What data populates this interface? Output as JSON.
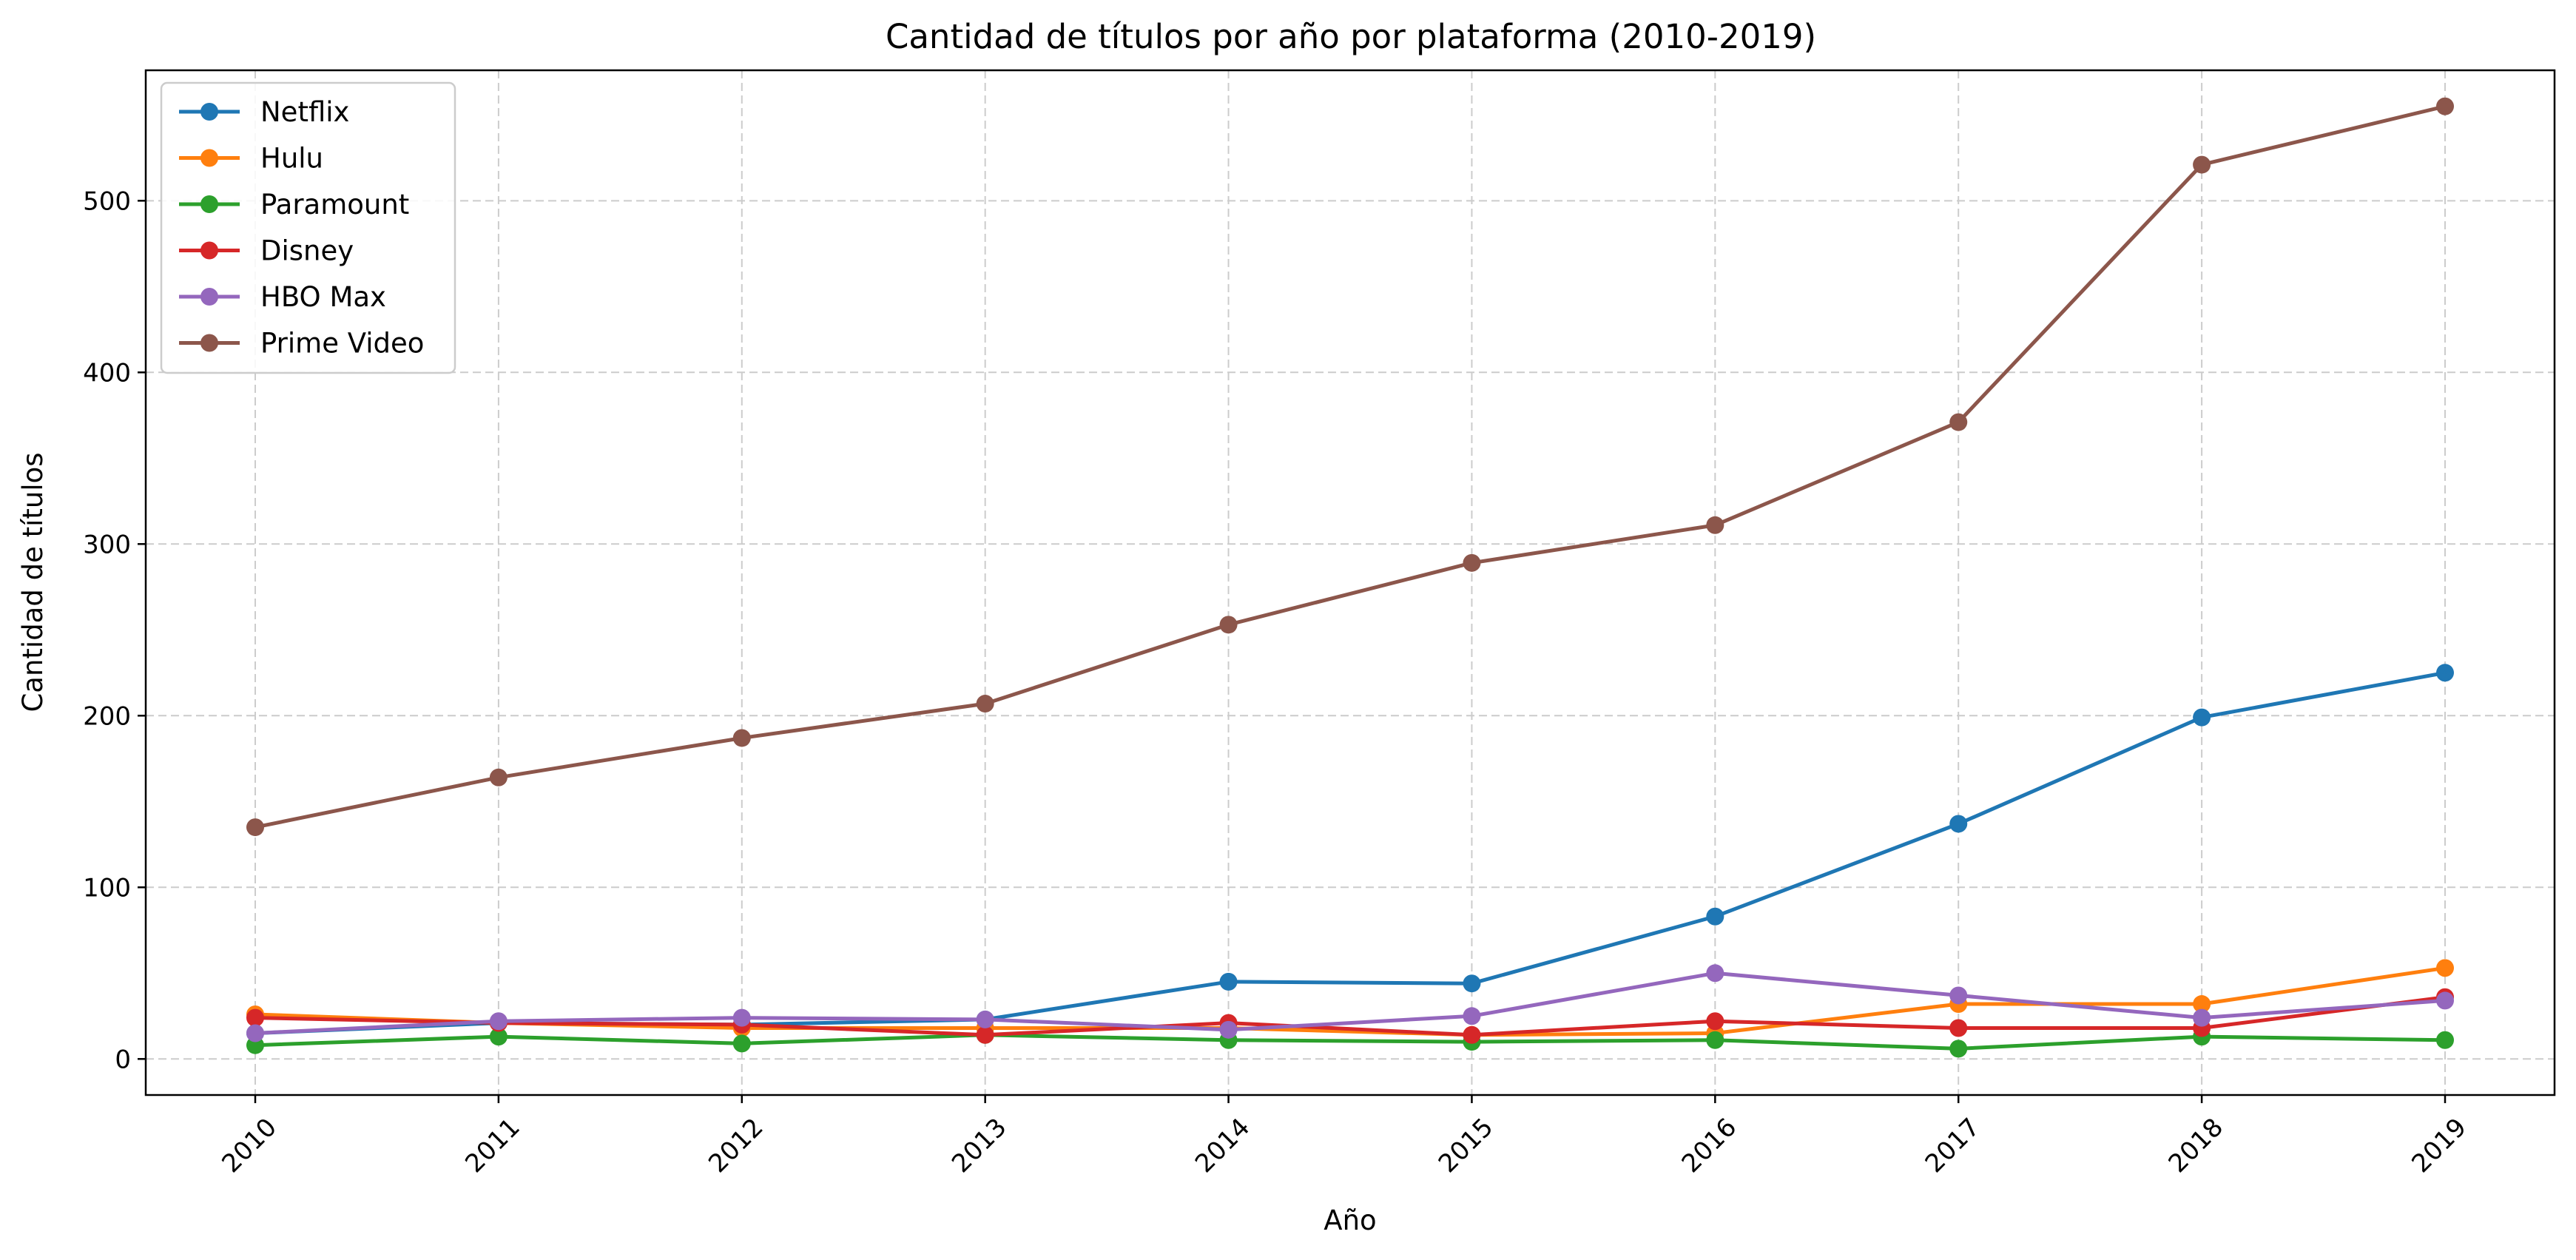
{
  "chart_data": {
    "type": "line",
    "title": "Cantidad de títulos por año por plataforma (2010-2019)",
    "xlabel": "Año",
    "ylabel": "Cantidad de títulos",
    "x": [
      2010,
      2011,
      2012,
      2013,
      2014,
      2015,
      2016,
      2017,
      2018,
      2019
    ],
    "x_tick_labels": [
      "2010",
      "2011",
      "2012",
      "2013",
      "2014",
      "2015",
      "2016",
      "2017",
      "2018",
      "2019"
    ],
    "y_ticks": [
      0,
      100,
      200,
      300,
      400,
      500
    ],
    "y_tick_labels": [
      "0",
      "100",
      "200",
      "300",
      "400",
      "500"
    ],
    "xlim": [
      2009.55,
      2019.45
    ],
    "ylim": [
      -21,
      576
    ],
    "grid": true,
    "legend_position": "top-left",
    "series": [
      {
        "name": "Netflix",
        "color": "#1f77b4",
        "values": [
          15,
          21,
          20,
          23,
          45,
          44,
          83,
          137,
          199,
          225
        ]
      },
      {
        "name": "Hulu",
        "color": "#ff7f0e",
        "values": [
          26,
          21,
          18,
          18,
          18,
          14,
          15,
          32,
          32,
          53
        ]
      },
      {
        "name": "Paramount",
        "color": "#2ca02c",
        "values": [
          8,
          13,
          9,
          14,
          11,
          10,
          11,
          6,
          13,
          11
        ]
      },
      {
        "name": "Disney",
        "color": "#d62728",
        "values": [
          24,
          21,
          20,
          14,
          21,
          14,
          22,
          18,
          18,
          36
        ]
      },
      {
        "name": "HBO Max",
        "color": "#9467bd",
        "values": [
          15,
          22,
          24,
          23,
          17,
          25,
          50,
          37,
          24,
          34
        ]
      },
      {
        "name": "Prime Video",
        "color": "#8c564b",
        "values": [
          135,
          164,
          187,
          207,
          253,
          289,
          311,
          371,
          521,
          555
        ]
      }
    ]
  }
}
